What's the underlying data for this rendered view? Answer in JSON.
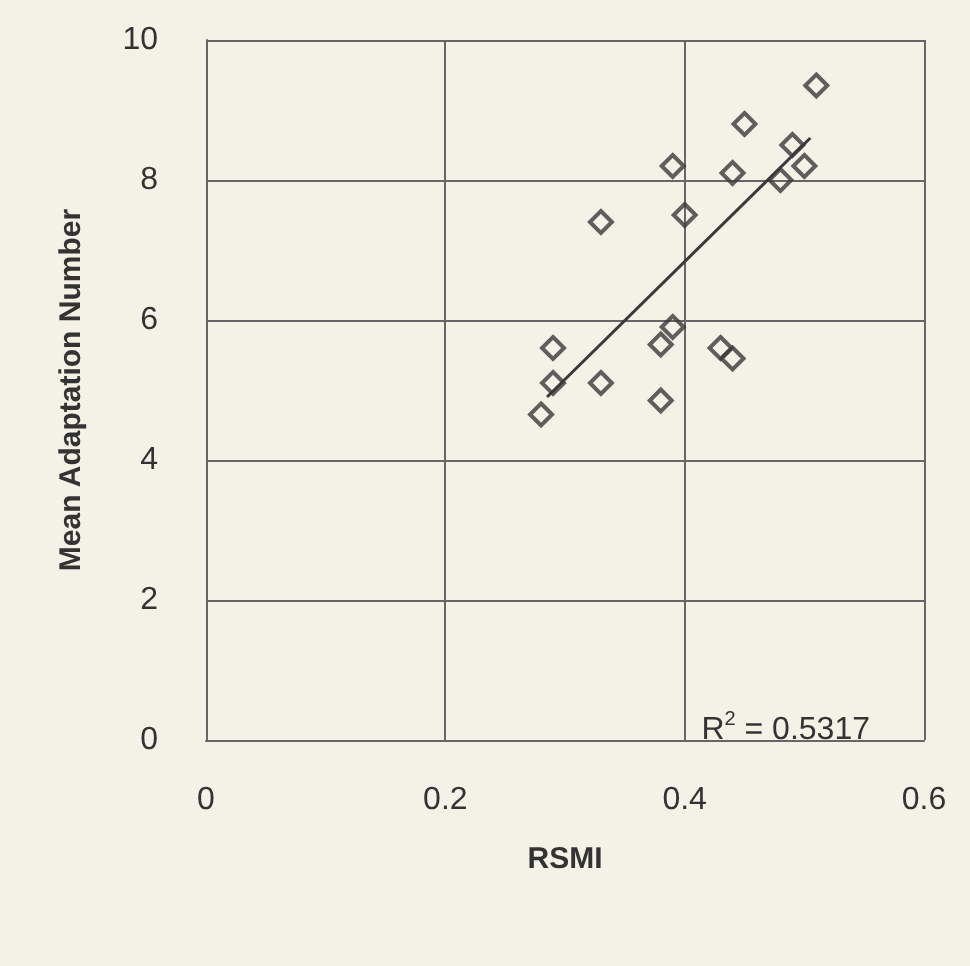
{
  "chart_data": {
    "type": "scatter",
    "xlabel": "RSMI",
    "ylabel": "Mean Adaptation Number",
    "xlim": [
      0,
      0.6
    ],
    "xticks": [
      0,
      0.2,
      0.4,
      0.6
    ],
    "ylim": [
      0,
      10
    ],
    "yticks": [
      0,
      2,
      4,
      6,
      8,
      10
    ],
    "grid": true,
    "marker": "diamond",
    "annotations": [
      "R$^{2}$ = 0.5317"
    ],
    "series": [
      {
        "color": "#3a3a3a",
        "x": [
          0.28,
          0.29,
          0.29,
          0.33,
          0.33,
          0.38,
          0.38,
          0.39,
          0.39,
          0.4,
          0.43,
          0.44,
          0.44,
          0.45,
          0.48,
          0.49,
          0.5,
          0.51
        ],
        "values": [
          4.65,
          5.1,
          5.6,
          5.1,
          7.4,
          4.85,
          5.65,
          5.9,
          8.2,
          7.5,
          5.6,
          5.45,
          8.1,
          8.8,
          8.0,
          8.5,
          8.2,
          9.35
        ]
      },
      {
        "type": "line",
        "color": "#3a3a3a",
        "marker": "none",
        "line_style": "solid",
        "x": [
          0.285,
          0.505
        ],
        "values": [
          4.9,
          8.6
        ]
      }
    ]
  }
}
